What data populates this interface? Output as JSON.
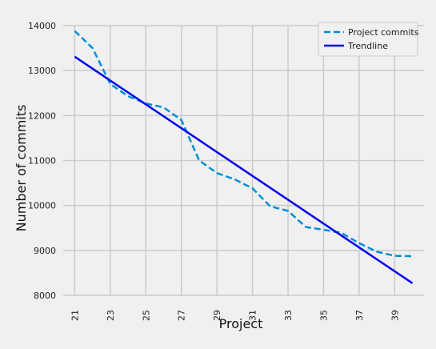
{
  "chart_data": {
    "type": "line",
    "xlabel": "Project",
    "ylabel": "Number of commits",
    "xlim": [
      20.35,
      40.65
    ],
    "ylim": [
      8000,
      14000
    ],
    "xticks": [
      "21",
      "23",
      "25",
      "27",
      "29",
      "31",
      "33",
      "35",
      "37",
      "39"
    ],
    "yticks": [
      "8000",
      "9000",
      "10000",
      "11000",
      "12000",
      "13000",
      "14000"
    ],
    "grid": true,
    "legend_position": "top-right",
    "series": [
      {
        "name": "Project commits",
        "style": "dashed",
        "color": "#008fd5",
        "x": [
          21,
          22,
          23,
          24,
          25,
          26,
          27,
          28,
          29,
          30,
          31,
          32,
          33,
          34,
          35,
          36,
          37,
          38,
          39,
          40
        ],
        "y": [
          13880,
          13500,
          12700,
          12430,
          12270,
          12180,
          11900,
          11000,
          10720,
          10580,
          10380,
          9980,
          9880,
          9520,
          9460,
          9390,
          9160,
          8970,
          8880,
          8870
        ]
      },
      {
        "name": "Trendline",
        "style": "solid",
        "color": "#0000ee",
        "x": [
          21,
          40
        ],
        "y": [
          13310,
          8270
        ]
      }
    ]
  }
}
